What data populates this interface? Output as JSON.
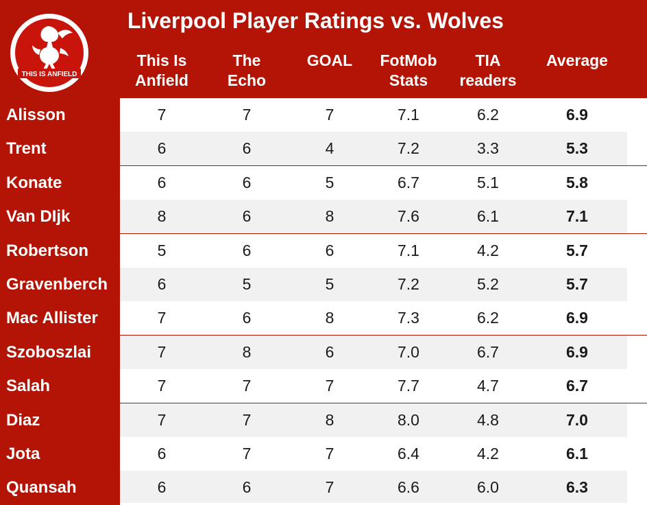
{
  "title": "Liverpool Player Ratings vs. Wolves",
  "logo_text": "THIS IS ANFIELD",
  "colors": {
    "brand_red": "#b31405",
    "row_alt": "#f1f1f1",
    "text": "#1a1a1a"
  },
  "chart_data": {
    "type": "table",
    "title": "Liverpool Player Ratings vs. Wolves",
    "columns": [
      "This Is\nAnfield",
      "The\nEcho",
      "GOAL",
      "FotMob\nStats",
      "TIA\nreaders",
      "Average"
    ],
    "rows": [
      {
        "player": "Alisson",
        "values": [
          "7",
          "7",
          "7",
          "7.1",
          "6.2",
          "6.9"
        ]
      },
      {
        "player": "Trent",
        "values": [
          "6",
          "6",
          "4",
          "7.2",
          "3.3",
          "5.3"
        ]
      },
      {
        "player": "Konate",
        "values": [
          "6",
          "6",
          "5",
          "6.7",
          "5.1",
          "5.8"
        ]
      },
      {
        "player": "Van DIjk",
        "values": [
          "8",
          "6",
          "8",
          "7.6",
          "6.1",
          "7.1"
        ]
      },
      {
        "player": "Robertson",
        "values": [
          "5",
          "6",
          "6",
          "7.1",
          "4.2",
          "5.7"
        ]
      },
      {
        "player": "Gravenberch",
        "values": [
          "6",
          "5",
          "5",
          "7.2",
          "5.2",
          "5.7"
        ]
      },
      {
        "player": "Mac Allister",
        "values": [
          "7",
          "6",
          "8",
          "7.3",
          "6.2",
          "6.9"
        ]
      },
      {
        "player": "Szoboszlai",
        "values": [
          "7",
          "8",
          "6",
          "7.0",
          "6.7",
          "6.9"
        ]
      },
      {
        "player": "Salah",
        "values": [
          "7",
          "7",
          "7",
          "7.7",
          "4.7",
          "6.7"
        ]
      },
      {
        "player": "Diaz",
        "values": [
          "7",
          "7",
          "8",
          "8.0",
          "4.8",
          "7.0"
        ]
      },
      {
        "player": "Jota",
        "values": [
          "6",
          "7",
          "7",
          "6.4",
          "4.2",
          "6.1"
        ]
      },
      {
        "player": "Quansah",
        "values": [
          "6",
          "6",
          "7",
          "6.6",
          "6.0",
          "6.3"
        ]
      }
    ]
  }
}
